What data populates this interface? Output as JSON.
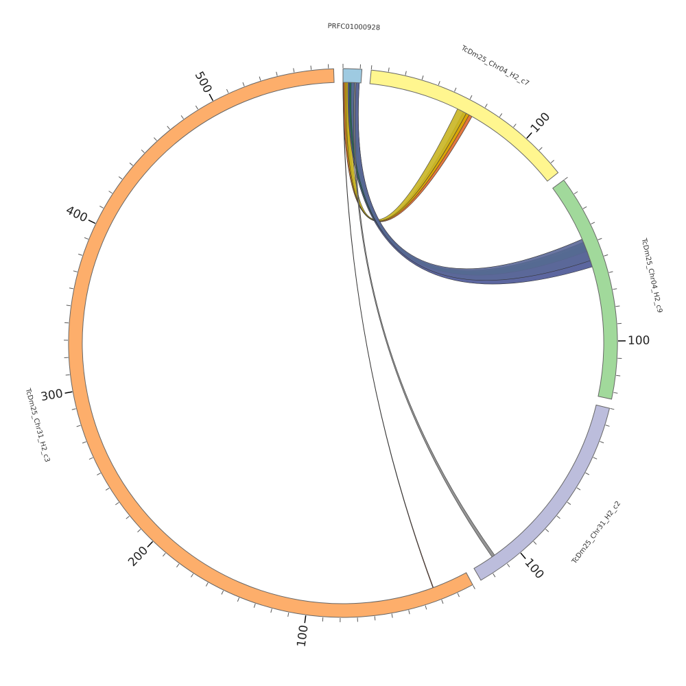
{
  "chart_data": {
    "type": "chord",
    "ideograms": [
      {
        "name": "PRFC01000928",
        "length": 11,
        "color": "#9ecae1",
        "ticks": []
      },
      {
        "name": "TcDm25_Chr04_H2_c7",
        "length": 127,
        "color": "#fff68f",
        "ticks": [
          100
        ]
      },
      {
        "name": "TcDm25_Chr04_H2_c9",
        "length": 134,
        "color": "#a1d99b",
        "ticks": [
          100
        ]
      },
      {
        "name": "TcDm25_Chr31_H2_c2",
        "length": 128,
        "color": "#bcbddc",
        "ticks": [
          100
        ]
      },
      {
        "name": "TcDm25_Chr31_H2_c3",
        "length": 573,
        "color": "#fdae6b",
        "ticks": [
          100,
          200,
          300,
          400,
          500
        ]
      }
    ],
    "minor_tick_step": 10,
    "links": [
      {
        "source": "PRFC01000928",
        "source_range": [
          0,
          3
        ],
        "target": "TcDm25_Chr04_H2_c7",
        "target_range": [
          62,
          66
        ],
        "color": "#e0682a"
      },
      {
        "source": "PRFC01000928",
        "source_range": [
          1,
          4
        ],
        "target": "TcDm25_Chr04_H2_c7",
        "target_range": [
          60,
          64
        ],
        "color": "#d9a800"
      },
      {
        "source": "PRFC01000928",
        "source_range": [
          2,
          6
        ],
        "target": "TcDm25_Chr04_H2_c7",
        "target_range": [
          56,
          62
        ],
        "color": "#c9b522"
      },
      {
        "source": "PRFC01000928",
        "source_range": [
          3,
          10
        ],
        "target": "TcDm25_Chr04_H2_c9",
        "target_range": [
          40,
          54
        ],
        "color": "#4a5595"
      },
      {
        "source": "PRFC01000928",
        "source_range": [
          4,
          8
        ],
        "target": "TcDm25_Chr04_H2_c9",
        "target_range": [
          38,
          44
        ],
        "color": "#1f7a55"
      },
      {
        "source": "PRFC01000928",
        "source_range": [
          5,
          10
        ],
        "target": "TcDm25_Chr04_H2_c9",
        "target_range": [
          36,
          50
        ],
        "color": "#5b6898"
      },
      {
        "source": "PRFC01000928",
        "source_range": [
          7,
          8
        ],
        "target": "TcDm25_Chr31_H2_c2",
        "target_range": [
          113,
          115
        ],
        "color": "#888888"
      },
      {
        "source": "PRFC01000928",
        "source_range": [
          0,
          0.3
        ],
        "target": "TcDm25_Chr31_H2_c3",
        "target_range": [
          22,
          22.4
        ],
        "color": "#a0441f"
      }
    ]
  }
}
